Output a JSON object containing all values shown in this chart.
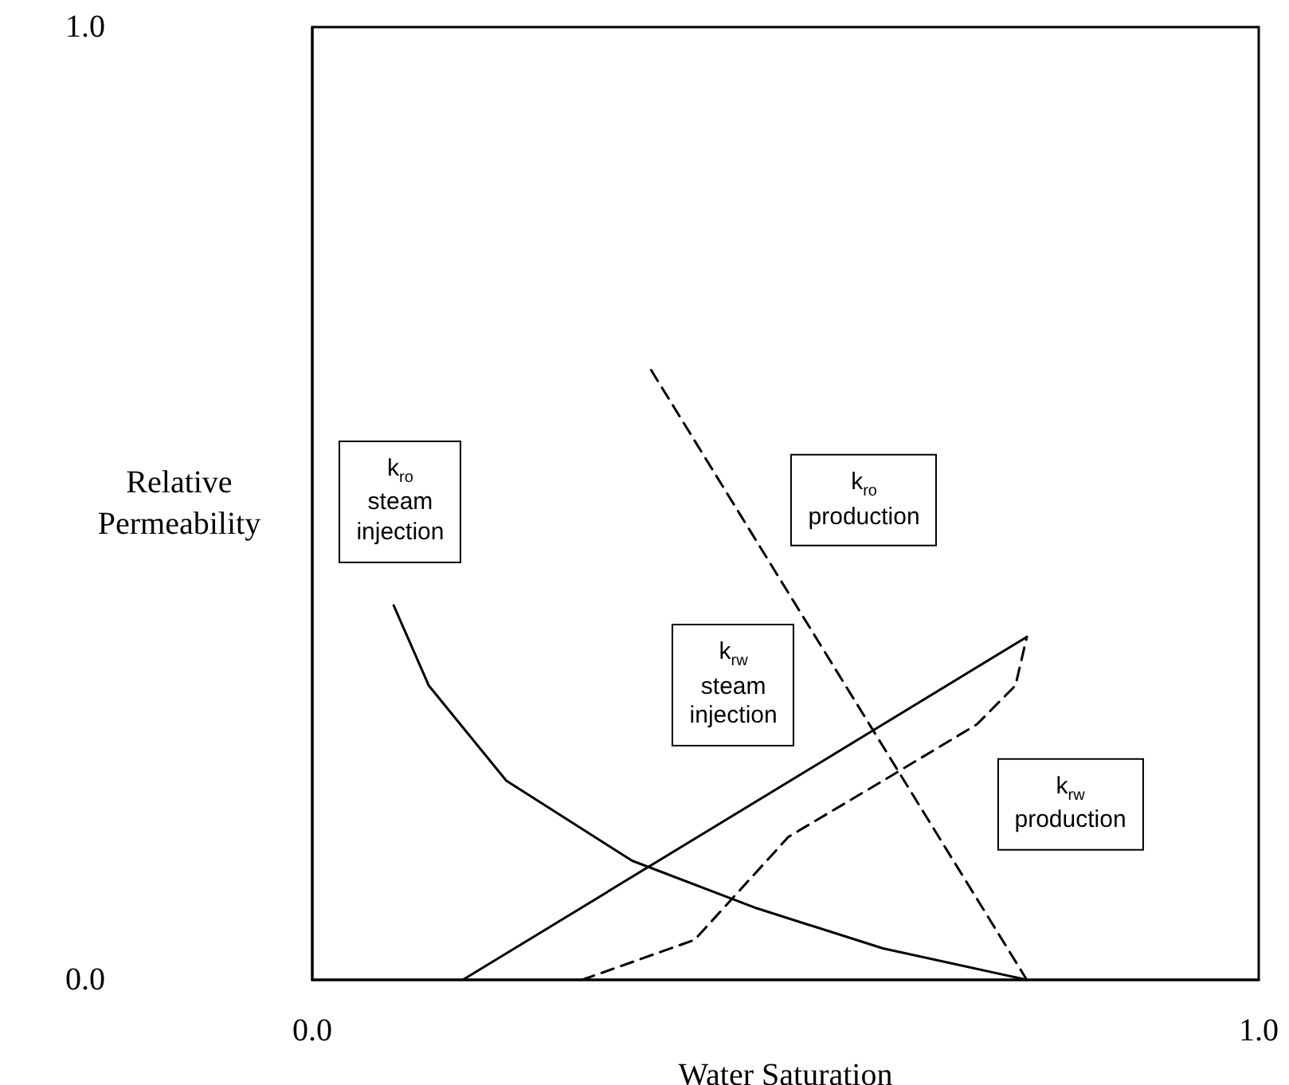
{
  "chart_data": {
    "type": "line",
    "xlabel": "Water Saturation",
    "ylabel": "Relative Permeability",
    "xlim": [
      0,
      1
    ],
    "ylim": [
      0,
      1
    ],
    "xticks": [
      {
        "value": 0,
        "label": "0.0"
      },
      {
        "value": 1,
        "label": "1.0"
      }
    ],
    "yticks": [
      {
        "value": 0,
        "label": "0.0"
      },
      {
        "value": 1,
        "label": "1.0"
      }
    ],
    "grid": false,
    "marker": "none",
    "series": [
      {
        "color": "#000000",
        "line_style": "solid",
        "x": [
          0.086,
          0.123,
          0.205,
          0.338,
          0.47,
          0.603,
          0.755
        ],
        "values": [
          0.393,
          0.309,
          0.209,
          0.125,
          0.075,
          0.033,
          0
        ]
      },
      {
        "color": "#000000",
        "line_style": "solid",
        "x": [
          0.159,
          0.755
        ],
        "values": [
          0,
          0.36
        ]
      },
      {
        "color": "#000000",
        "line_style": "dashed",
        "x": [
          0.358,
          0.755
        ],
        "values": [
          0.64,
          0
        ]
      },
      {
        "color": "#000000",
        "line_style": "dashed",
        "x": [
          0.285,
          0.404,
          0.503,
          0.603,
          0.702,
          0.743,
          0.755
        ],
        "values": [
          0,
          0.042,
          0.15,
          0.209,
          0.268,
          0.309,
          0.36
        ]
      }
    ],
    "annotations": [
      "k$_{ro}$\nsteam\ninjection",
      "k$_{ro}$\nproduction",
      "k$_{rw}$\nsteam\ninjection",
      "k$_{rw}$\nproduction"
    ]
  }
}
